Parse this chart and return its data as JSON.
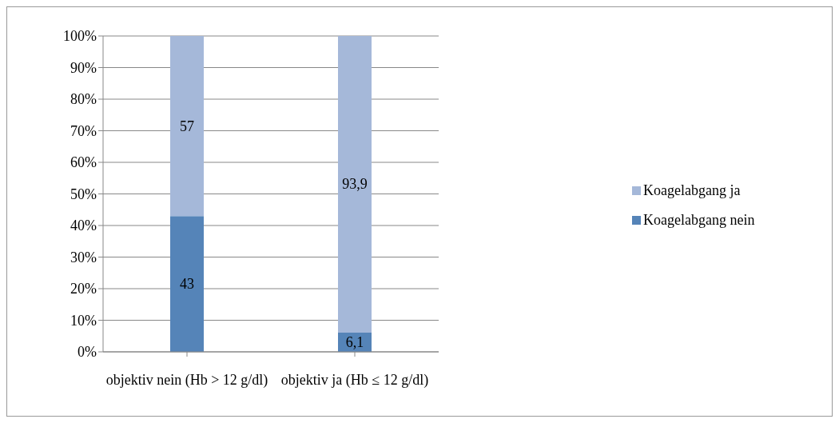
{
  "chart_data": {
    "type": "bar",
    "stacked": true,
    "categories": [
      "objektiv nein (Hb > 12 g/dl)",
      "objektiv ja (Hb ≤ 12 g/dl)"
    ],
    "series": [
      {
        "name": "Koagelabgang nein",
        "color": "#5584b8",
        "values": [
          43,
          6.1
        ],
        "value_labels": [
          "43",
          "6,1"
        ]
      },
      {
        "name": "Koagelabgang ja",
        "color": "#a5b8d9",
        "values": [
          57,
          93.9
        ],
        "value_labels": [
          "57",
          "93,9"
        ]
      }
    ],
    "ylim": [
      0,
      100
    ],
    "yticks": [
      {
        "value": 0,
        "label": "0%"
      },
      {
        "value": 10,
        "label": "10%"
      },
      {
        "value": 20,
        "label": "20%"
      },
      {
        "value": 30,
        "label": "30%"
      },
      {
        "value": 40,
        "label": "40%"
      },
      {
        "value": 50,
        "label": "50%"
      },
      {
        "value": 60,
        "label": "60%"
      },
      {
        "value": 70,
        "label": "70%"
      },
      {
        "value": 80,
        "label": "80%"
      },
      {
        "value": 90,
        "label": "90%"
      },
      {
        "value": 100,
        "label": "100%"
      }
    ],
    "grid": "y",
    "legend": "right"
  }
}
